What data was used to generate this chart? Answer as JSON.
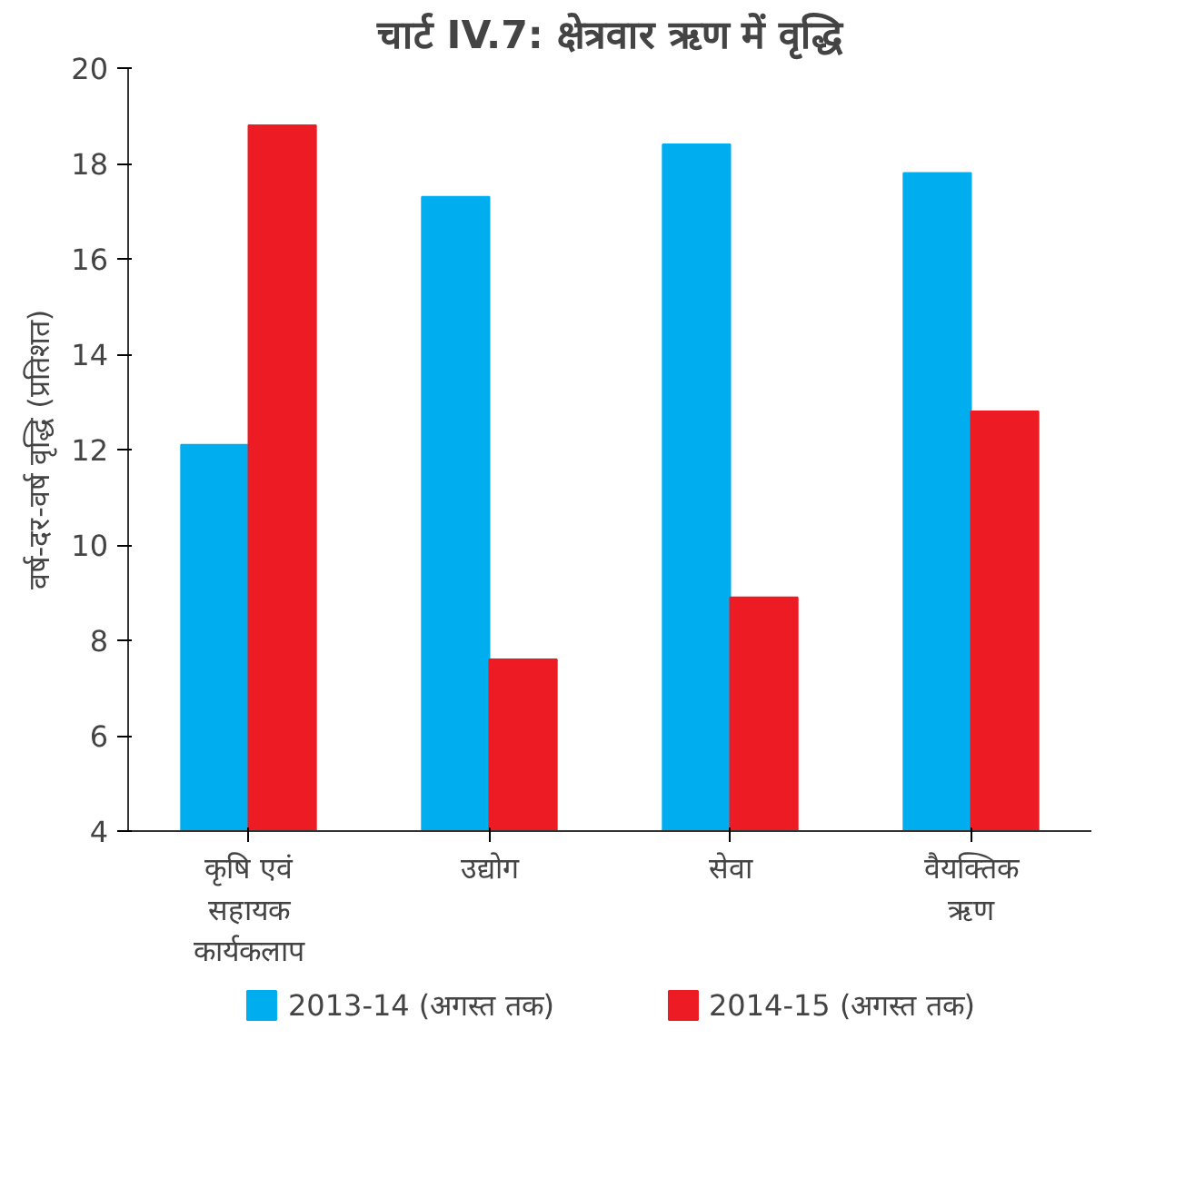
{
  "chart_data": {
    "type": "bar",
    "title": "चार्ट IV.7: क्षेत्रवार ऋण में वृद्धि",
    "ylabel": "वर्ष-दर-वर्ष वृद्धि (प्रतिशत)",
    "categories": [
      "कृषि एवं\nसहायक\nकार्यकलाप",
      "उद्योग",
      "सेवा",
      "वैयक्तिक\nऋण"
    ],
    "series": [
      {
        "name": "2013-14 (अगस्त तक)",
        "color": "#00aeef",
        "values": [
          12.1,
          17.3,
          18.4,
          17.8
        ]
      },
      {
        "name": "2014-15 (अगस्त तक)",
        "color": "#ed1c24",
        "values": [
          18.8,
          7.6,
          8.9,
          12.8
        ]
      }
    ],
    "ylim": [
      4,
      20
    ],
    "yticks": [
      4,
      6,
      8,
      10,
      12,
      14,
      16,
      18,
      20
    ],
    "grid": false,
    "legend": "bottom"
  }
}
